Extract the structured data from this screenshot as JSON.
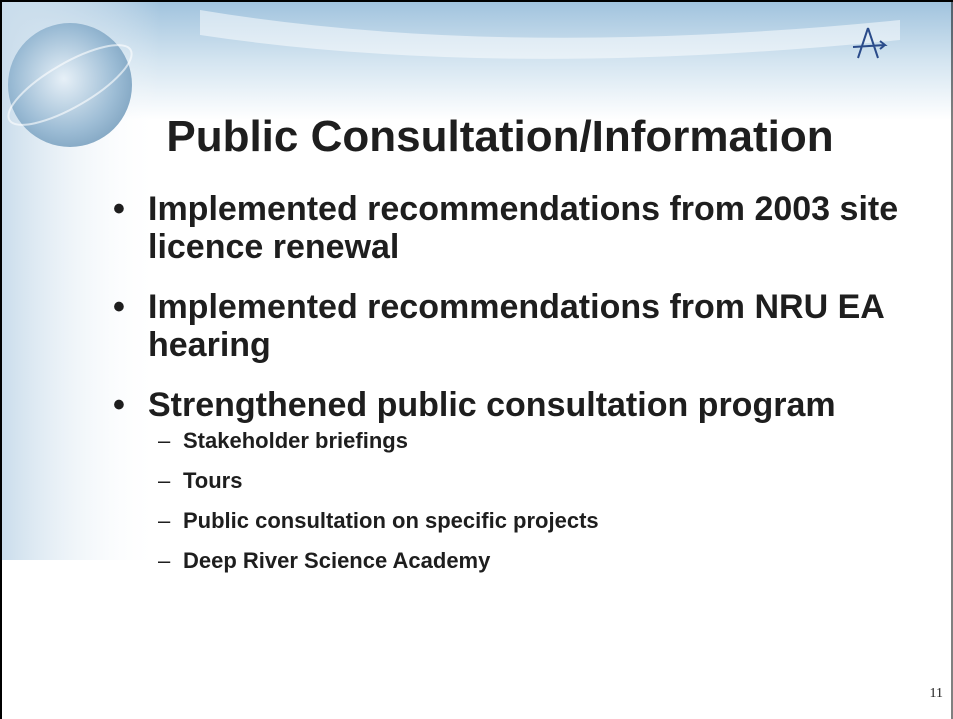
{
  "slide": {
    "title": "Public Consultation/Information",
    "bullets": [
      {
        "text": "Implemented recommendations from 2003 site licence renewal",
        "sub": []
      },
      {
        "text": "Implemented recommendations from NRU EA hearing",
        "sub": []
      },
      {
        "text": "Strengthened public consultation program",
        "sub": [
          "Stakeholder briefings",
          "Tours",
          "Public consultation on specific projects",
          "Deep River Science Academy"
        ]
      }
    ],
    "page_number": "11"
  }
}
